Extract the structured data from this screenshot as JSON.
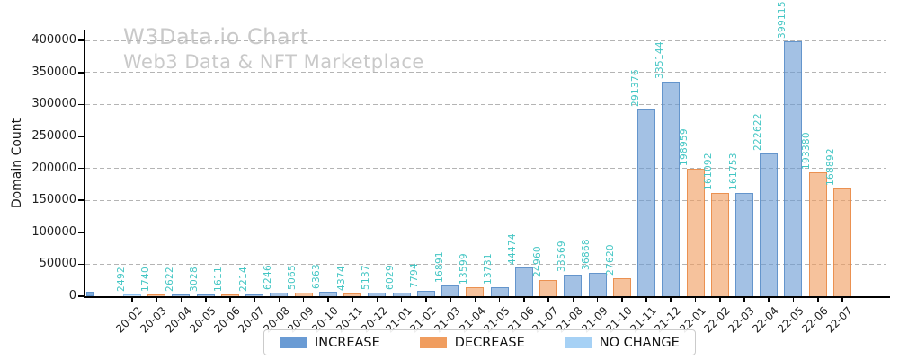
{
  "title": "W3Data.io Chart",
  "subtitle": "Web3 Data & NFT Marketplace",
  "chart_data": {
    "type": "bar",
    "title": "W3Data.io Chart",
    "subtitle": "Web3 Data & NFT Marketplace",
    "xlabel": "",
    "ylabel": "Domain Count",
    "ylim": [
      0,
      417000
    ],
    "yticks": [
      "0",
      "50000",
      "100000",
      "150000",
      "200000",
      "250000",
      "300000",
      "350000",
      "400000"
    ],
    "grid": "horizontal-dashed",
    "categories": [
      "20-02",
      "20-03",
      "20-04",
      "20-05",
      "20-06",
      "20-07",
      "20-08",
      "20-09",
      "20-10",
      "20-11",
      "20-12",
      "21-01",
      "21-02",
      "21-03",
      "21-04",
      "21-05",
      "21-06",
      "21-07",
      "21-08",
      "21-09",
      "21-10",
      "21-11",
      "21-12",
      "22-01",
      "22-02",
      "22-03",
      "22-04",
      "22-05",
      "22-06",
      "22-07"
    ],
    "values": [
      2492,
      1740,
      2622,
      3028,
      1611,
      2214,
      6246,
      5065,
      6363,
      4374,
      5137,
      6029,
      7794,
      16891,
      13599,
      13731,
      44474,
      24960,
      33569,
      36868,
      27620,
      291376,
      335144,
      198959,
      161092,
      161753,
      222622,
      399115,
      193380,
      168892
    ],
    "statuses": [
      "no_change",
      "decrease",
      "increase",
      "increase",
      "decrease",
      "increase",
      "increase",
      "decrease",
      "increase",
      "decrease",
      "increase",
      "increase",
      "increase",
      "increase",
      "decrease",
      "increase",
      "increase",
      "decrease",
      "increase",
      "increase",
      "decrease",
      "increase",
      "increase",
      "decrease",
      "decrease",
      "increase",
      "increase",
      "increase",
      "decrease",
      "decrease"
    ],
    "value_label_color": "#44c6c4",
    "colors": {
      "increase": "#6a9bd4",
      "decrease": "#f09d5f",
      "no_change": "#a6d1f5"
    },
    "legend": {
      "position": "bottom-center",
      "entries": [
        {
          "label": "INCREASE",
          "status": "increase",
          "color": "#6a9bd4"
        },
        {
          "label": "DECREASE",
          "status": "decrease",
          "color": "#f09d5f"
        },
        {
          "label": "NO CHANGE",
          "status": "no_change",
          "color": "#a6d1f5"
        }
      ]
    }
  }
}
